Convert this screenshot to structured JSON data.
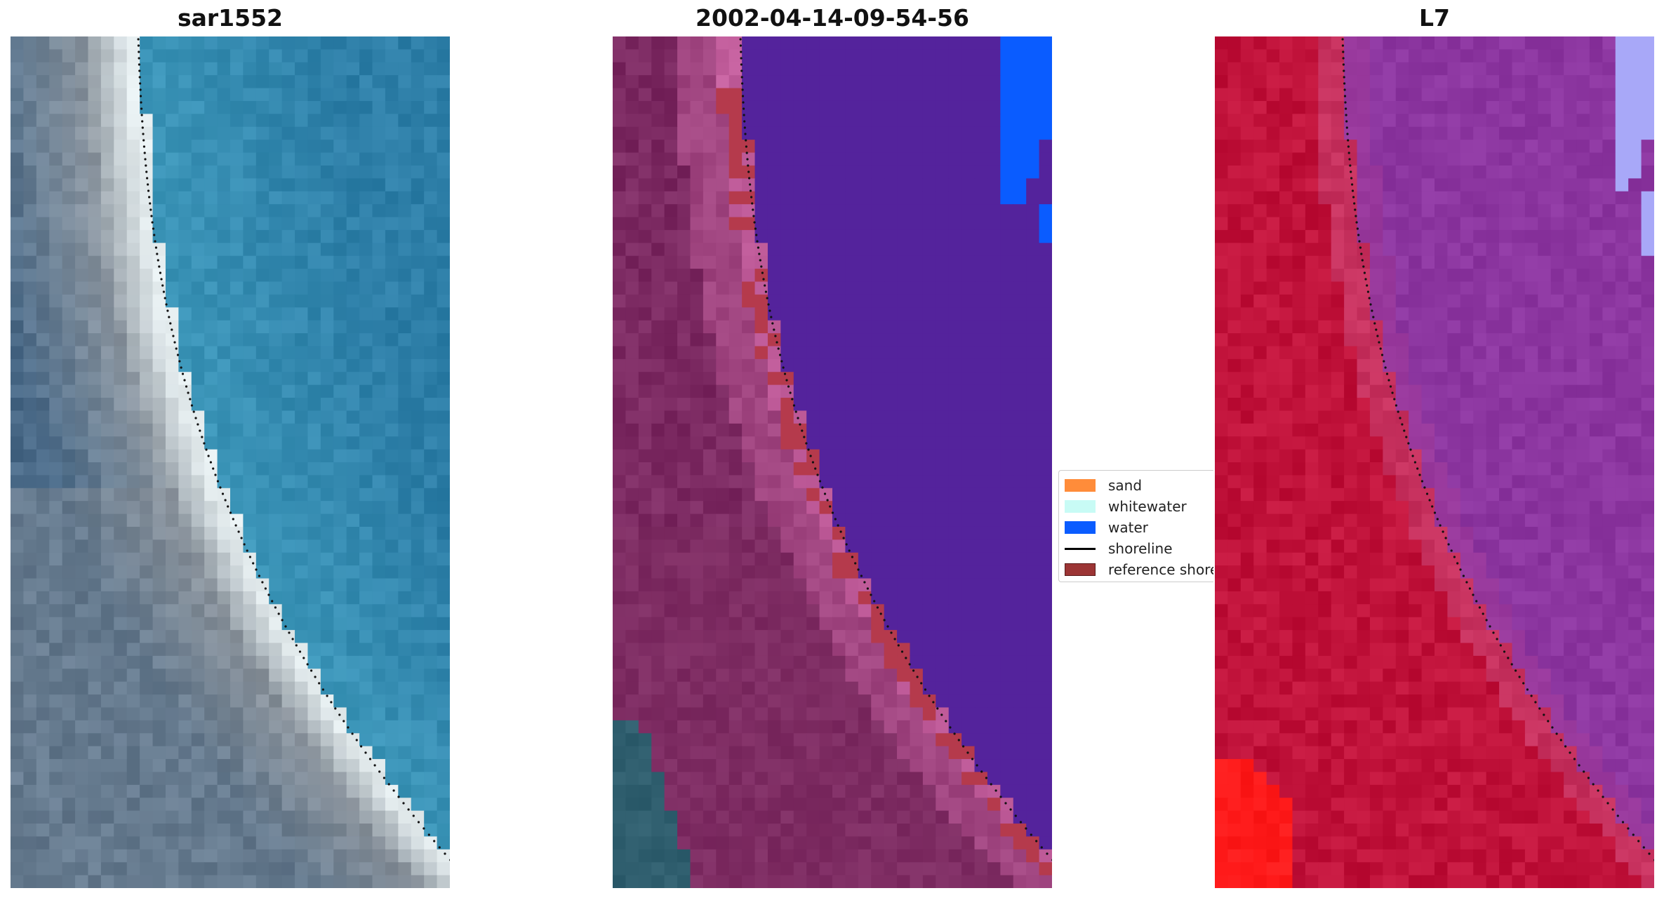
{
  "panels": [
    {
      "title": "sar1552"
    },
    {
      "title": "2002-04-14-09-54-56"
    },
    {
      "title": "L7"
    }
  ],
  "legend": {
    "items": [
      {
        "label": "sand",
        "color": "#ff8c3a",
        "kind": "patch"
      },
      {
        "label": "whitewater",
        "color": "#c8fbf5",
        "kind": "patch"
      },
      {
        "label": "water",
        "color": "#0a5cff",
        "kind": "patch"
      },
      {
        "label": "shoreline",
        "color": "#000000",
        "kind": "line"
      },
      {
        "label": "reference shoreline",
        "color": "#9c3535",
        "kind": "patch"
      }
    ]
  },
  "colors": {
    "rgb_ocean": "#2e7fa8",
    "rgb_land": "#4a6a88",
    "rgb_beach": "#e4ecee",
    "class_water": "#54239c",
    "class_land": "#7c2a62",
    "class_sand_zone": "#c4609e",
    "class_reference": "#b53a4c",
    "class_bright_water": "#0a5cff",
    "class_dark_teal": "#2f5e6e",
    "index_water": "#8c36a0",
    "index_land": "#c0123a",
    "index_pale": "#a8a8f8",
    "index_bright_red": "#ff1a1a"
  }
}
